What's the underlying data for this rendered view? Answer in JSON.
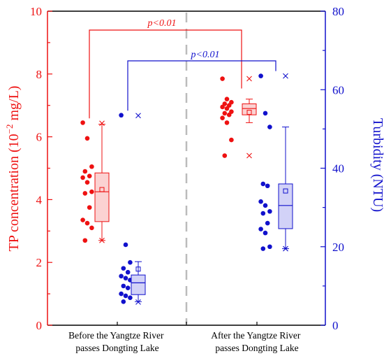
{
  "chart_data": {
    "type": "boxplot",
    "title": "",
    "categories": [
      [
        "Before the Yangtze River",
        "passes Dongting Lake"
      ],
      [
        "After the Yangtze River",
        "passes Dongting Lake"
      ]
    ],
    "y_left": {
      "label_main": "TP concentration (10",
      "label_exp": "−2",
      "label_tail": " mg/L)",
      "range": [
        0,
        10
      ],
      "ticks": [
        "0",
        "2",
        "4",
        "6",
        "8",
        "10"
      ],
      "color": "#ee1111"
    },
    "y_right": {
      "label": "Turbidity (NTU)",
      "range": [
        0,
        80
      ],
      "ticks": [
        "0",
        "20",
        "40",
        "60",
        "80"
      ],
      "color": "#1111cc"
    },
    "series": [
      {
        "name": "TP",
        "axis": "left",
        "groups": [
          {
            "points": [
              6.45,
              5.95,
              5.05,
              4.9,
              4.75,
              4.7,
              4.55,
              4.25,
              4.2,
              3.75,
              3.35,
              3.25,
              3.1,
              2.7
            ],
            "q1": 3.3,
            "median": 4.25,
            "q3": 4.85,
            "mean": 4.32,
            "whisker_low": 2.7,
            "whisker_high": 6.4,
            "min_marker": 2.7,
            "max_marker": 6.43
          },
          {
            "points": [
              7.85,
              7.2,
              7.1,
              7.05,
              7.0,
              6.95,
              6.9,
              6.8,
              6.75,
              6.7,
              6.6,
              6.45,
              5.9,
              5.4
            ],
            "q1": 6.7,
            "median": 6.9,
            "q3": 7.05,
            "mean": 6.78,
            "whisker_low": 6.45,
            "whisker_high": 7.2,
            "min_marker": 5.4,
            "max_marker": 7.85
          }
        ]
      },
      {
        "name": "Turbidity",
        "axis": "right",
        "groups": [
          {
            "points": [
              53.5,
              20.5,
              16.0,
              14.5,
              13.5,
              12.5,
              12.0,
              11.5,
              10.0,
              9.5,
              8.0,
              7.5,
              7.0,
              6.0
            ],
            "q1": 7.8,
            "median": 10.8,
            "q3": 12.8,
            "mean": 14.3,
            "whisker_low": 6.0,
            "whisker_high": 16.2,
            "min_marker": 5.9,
            "max_marker": 53.4
          },
          {
            "points": [
              63.5,
              54.0,
              50.5,
              36.0,
              35.5,
              31.5,
              30.5,
              29.0,
              28.5,
              26.0,
              24.5,
              23.5,
              20.0,
              19.5
            ],
            "q1": 24.6,
            "median": 30.5,
            "q3": 36.0,
            "mean": 34.2,
            "whisker_low": 19.5,
            "whisker_high": 50.5,
            "min_marker": 19.5,
            "max_marker": 63.5
          }
        ]
      }
    ],
    "annotations": [
      {
        "text": "p<0.01",
        "color": "#ee1111",
        "series": "TP"
      },
      {
        "text": "p<0.01",
        "color": "#1111cc",
        "series": "Turbidity"
      }
    ],
    "divider": "dashed vertical line between groups",
    "grid": false
  }
}
